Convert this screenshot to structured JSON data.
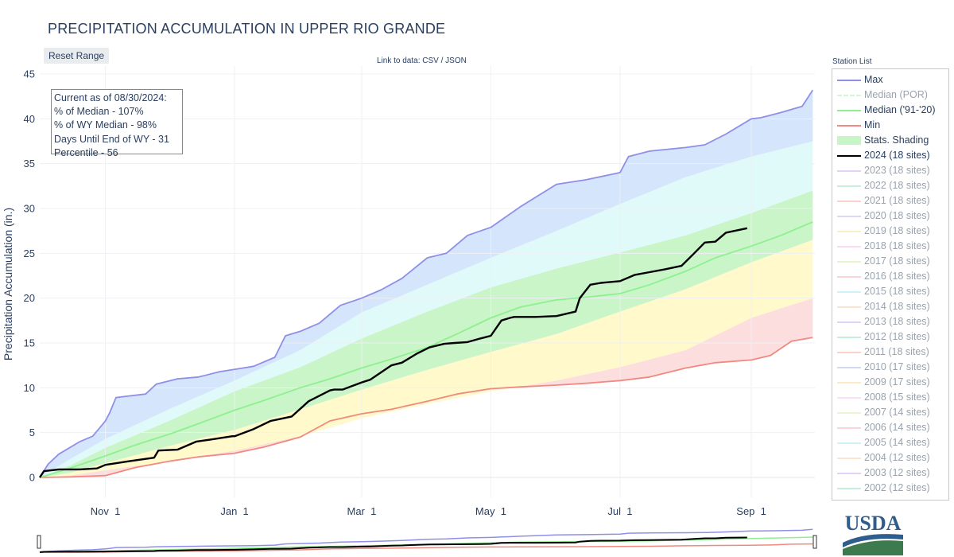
{
  "page": {
    "title": "PRECIPITATION ACCUMULATION IN UPPER RIO GRANDE",
    "reset_label": "Reset Range",
    "data_link_prefix": "Link to data:",
    "data_link_csv": "CSV",
    "data_link_sep": "/",
    "data_link_json": "JSON",
    "logo_text": "USDA"
  },
  "annotation": {
    "lines": [
      "Current as of 08/30/2024:",
      "% of Median - 107%",
      "% of WY Median - 98%",
      "Days Until End of WY - 31",
      "Percentile - 56"
    ]
  },
  "legend": {
    "title": "Station List",
    "items": [
      {
        "label": "Max",
        "color": "#8f8fe8",
        "style": "line",
        "active": true
      },
      {
        "label": "Median (POR)",
        "color": "#a6f2a6",
        "style": "dash",
        "active": false
      },
      {
        "label": "Median ('91-'20)",
        "color": "#8ef08e",
        "style": "line",
        "active": true
      },
      {
        "label": "Min",
        "color": "#f08a80",
        "style": "line",
        "active": true
      },
      {
        "label": "Stats. Shading",
        "color": "#c8f5c8",
        "style": "fill",
        "active": true
      },
      {
        "label": "2024 (18 sites)",
        "color": "#000000",
        "style": "line",
        "active": true
      },
      {
        "label": "2023 (18 sites)",
        "color": "#c9a4f2",
        "style": "line",
        "active": false
      },
      {
        "label": "2022 (18 sites)",
        "color": "#8fdcb8",
        "style": "line",
        "active": false
      },
      {
        "label": "2021 (18 sites)",
        "color": "#f4a69c",
        "style": "line",
        "active": false
      },
      {
        "label": "2020 (18 sites)",
        "color": "#b4b4f0",
        "style": "line",
        "active": false
      },
      {
        "label": "2019 (18 sites)",
        "color": "#f6e08c",
        "style": "line",
        "active": false
      },
      {
        "label": "2018 (18 sites)",
        "color": "#f4b4f0",
        "style": "line",
        "active": false
      },
      {
        "label": "2017 (18 sites)",
        "color": "#cdeaa0",
        "style": "line",
        "active": false
      },
      {
        "label": "2016 (18 sites)",
        "color": "#f6a8b8",
        "style": "line",
        "active": false
      },
      {
        "label": "2015 (18 sites)",
        "color": "#9ce6f2",
        "style": "line",
        "active": false
      },
      {
        "label": "2014 (18 sites)",
        "color": "#f6c8a0",
        "style": "line",
        "active": false
      },
      {
        "label": "2013 (18 sites)",
        "color": "#c9a4f2",
        "style": "line",
        "active": false
      },
      {
        "label": "2012 (18 sites)",
        "color": "#8fdcb8",
        "style": "line",
        "active": false
      },
      {
        "label": "2011 (18 sites)",
        "color": "#f4a69c",
        "style": "line",
        "active": false
      },
      {
        "label": "2010 (17 sites)",
        "color": "#a8b4ec",
        "style": "line",
        "active": false
      },
      {
        "label": "2009 (17 sites)",
        "color": "#f6d58c",
        "style": "line",
        "active": false
      },
      {
        "label": "2008 (15 sites)",
        "color": "#f4c0f0",
        "style": "line",
        "active": false
      },
      {
        "label": "2007 (14 sites)",
        "color": "#d4ecac",
        "style": "line",
        "active": false
      },
      {
        "label": "2006 (14 sites)",
        "color": "#f6a8b8",
        "style": "line",
        "active": false
      },
      {
        "label": "2005 (14 sites)",
        "color": "#9ce6f2",
        "style": "line",
        "active": false
      },
      {
        "label": "2004 (12 sites)",
        "color": "#f6c8a0",
        "style": "line",
        "active": false
      },
      {
        "label": "2003 (12 sites)",
        "color": "#c9a4f2",
        "style": "line",
        "active": false
      },
      {
        "label": "2002 (12 sites)",
        "color": "#8fdcb8",
        "style": "line",
        "active": false
      }
    ]
  },
  "chart_data": {
    "type": "line",
    "title": "PRECIPITATION ACCUMULATION IN UPPER RIO GRANDE",
    "ylabel": "Precipitation Accumulation (in.)",
    "xlabel": "",
    "ylim": [
      -2.5,
      45
    ],
    "y_ticks": [
      0,
      5,
      10,
      15,
      20,
      25,
      30,
      35,
      40,
      45
    ],
    "x_range": [
      "2023-10-01",
      "2024-10-01"
    ],
    "x_ticks": [
      {
        "date": "2023-11-01",
        "label": "Nov  1"
      },
      {
        "date": "2024-01-01",
        "label": "Jan  1"
      },
      {
        "date": "2024-03-01",
        "label": "Mar  1"
      },
      {
        "date": "2024-05-01",
        "label": "May  1"
      },
      {
        "date": "2024-07-01",
        "label": "Jul  1"
      },
      {
        "date": "2024-09-01",
        "label": "Sep  1"
      }
    ],
    "grid": true,
    "legend_position": "right",
    "bands": {
      "colors": [
        "#fddede",
        "#fff9cc",
        "#c9f5c9",
        "#e0fafa",
        "#d5e5fb"
      ],
      "x": [
        "2023-10-01",
        "2023-10-15",
        "2023-11-01",
        "2023-12-01",
        "2024-01-01",
        "2024-02-01",
        "2024-03-01",
        "2024-04-01",
        "2024-05-01",
        "2024-06-01",
        "2024-07-01",
        "2024-08-01",
        "2024-09-01",
        "2024-09-30"
      ],
      "p10": [
        0.0,
        0.2,
        0.8,
        1.8,
        3.0,
        4.6,
        6.6,
        8.2,
        9.6,
        10.8,
        12.3,
        14.2,
        17.8,
        20.0
      ],
      "p30": [
        0.0,
        0.5,
        1.6,
        3.5,
        5.3,
        7.6,
        9.8,
        12.0,
        14.0,
        16.0,
        18.5,
        21.0,
        24.0,
        26.5
      ],
      "p70": [
        0.0,
        1.3,
        3.3,
        6.3,
        9.6,
        12.3,
        15.5,
        18.5,
        21.2,
        23.3,
        25.1,
        27.0,
        29.5,
        32.0
      ],
      "p90": [
        0.0,
        2.0,
        4.3,
        7.6,
        10.8,
        14.2,
        18.4,
        21.5,
        24.5,
        27.5,
        30.5,
        33.5,
        35.8,
        37.5
      ]
    },
    "series": [
      {
        "name": "Max",
        "color": "#8f8fe8",
        "x": [
          "2023-10-01",
          "2023-10-05",
          "2023-10-10",
          "2023-10-20",
          "2023-10-26",
          "2023-11-01",
          "2023-11-03",
          "2023-11-06",
          "2023-11-09",
          "2023-11-20",
          "2023-11-25",
          "2023-12-05",
          "2023-12-15",
          "2023-12-25",
          "2024-01-05",
          "2024-01-10",
          "2024-01-20",
          "2024-01-25",
          "2024-02-01",
          "2024-02-10",
          "2024-02-20",
          "2024-03-01",
          "2024-03-10",
          "2024-03-20",
          "2024-04-01",
          "2024-04-10",
          "2024-04-20",
          "2024-05-01",
          "2024-05-15",
          "2024-06-01",
          "2024-06-15",
          "2024-07-01",
          "2024-07-05",
          "2024-07-15",
          "2024-08-01",
          "2024-08-10",
          "2024-08-20",
          "2024-09-01",
          "2024-09-05",
          "2024-09-15",
          "2024-09-25",
          "2024-09-30"
        ],
        "y": [
          0,
          1.5,
          2.6,
          4.0,
          4.6,
          6.3,
          7.2,
          8.9,
          9.0,
          9.3,
          10.4,
          11.0,
          11.2,
          11.8,
          12.2,
          12.4,
          13.4,
          15.8,
          16.3,
          17.2,
          19.2,
          20.0,
          20.9,
          22.2,
          24.5,
          25.0,
          27.0,
          27.9,
          30.2,
          32.7,
          33.2,
          34.0,
          35.8,
          36.4,
          36.8,
          37.1,
          38.3,
          40.0,
          40.1,
          40.7,
          41.4,
          43.2
        ]
      },
      {
        "name": "Median ('91-'20)",
        "color": "#8ef08e",
        "x": [
          "2023-10-01",
          "2023-10-15",
          "2023-11-01",
          "2023-11-15",
          "2023-12-01",
          "2023-12-15",
          "2024-01-01",
          "2024-01-15",
          "2024-02-01",
          "2024-02-15",
          "2024-03-01",
          "2024-03-15",
          "2024-04-01",
          "2024-04-15",
          "2024-05-01",
          "2024-05-15",
          "2024-06-01",
          "2024-06-15",
          "2024-07-01",
          "2024-07-15",
          "2024-08-01",
          "2024-08-15",
          "2024-09-01",
          "2024-09-15",
          "2024-09-30"
        ],
        "y": [
          0,
          1.0,
          2.4,
          3.6,
          4.8,
          6.0,
          7.5,
          8.6,
          10.0,
          11.0,
          12.2,
          13.2,
          14.5,
          16.0,
          17.8,
          19.0,
          19.8,
          20.1,
          20.5,
          21.5,
          23.0,
          24.5,
          25.8,
          27.0,
          28.5
        ]
      },
      {
        "name": "Min",
        "color": "#f08a80",
        "x": [
          "2023-10-01",
          "2023-10-15",
          "2023-11-01",
          "2023-11-15",
          "2023-12-01",
          "2023-12-15",
          "2024-01-01",
          "2024-01-15",
          "2024-02-01",
          "2024-02-15",
          "2024-03-01",
          "2024-03-15",
          "2024-04-01",
          "2024-04-15",
          "2024-05-01",
          "2024-05-15",
          "2024-06-01",
          "2024-06-15",
          "2024-07-01",
          "2024-07-15",
          "2024-08-01",
          "2024-08-15",
          "2024-09-01",
          "2024-09-10",
          "2024-09-20",
          "2024-09-30"
        ],
        "y": [
          0,
          0.05,
          0.2,
          1.1,
          1.8,
          2.3,
          2.7,
          3.4,
          4.5,
          6.3,
          7.1,
          7.6,
          8.5,
          9.3,
          9.9,
          10.1,
          10.3,
          10.5,
          10.8,
          11.2,
          12.2,
          12.8,
          13.1,
          13.6,
          15.2,
          15.6
        ]
      },
      {
        "name": "2024 (18 sites)",
        "color": "#000000",
        "x": [
          "2023-10-01",
          "2023-10-03",
          "2023-10-10",
          "2023-10-20",
          "2023-10-28",
          "2023-11-01",
          "2023-11-12",
          "2023-11-24",
          "2023-11-26",
          "2023-12-05",
          "2023-12-14",
          "2023-12-20",
          "2023-12-31",
          "2024-01-01",
          "2024-01-10",
          "2024-01-18",
          "2024-01-22",
          "2024-01-28",
          "2024-02-05",
          "2024-02-15",
          "2024-02-17",
          "2024-02-21",
          "2024-03-01",
          "2024-03-05",
          "2024-03-15",
          "2024-03-20",
          "2024-03-27",
          "2024-04-02",
          "2024-04-09",
          "2024-04-14",
          "2024-04-20",
          "2024-04-26",
          "2024-05-01",
          "2024-05-06",
          "2024-05-10",
          "2024-05-12",
          "2024-05-22",
          "2024-06-01",
          "2024-06-10",
          "2024-06-12",
          "2024-06-17",
          "2024-06-22",
          "2024-07-01",
          "2024-07-08",
          "2024-07-15",
          "2024-07-22",
          "2024-07-30",
          "2024-08-05",
          "2024-08-10",
          "2024-08-15",
          "2024-08-20",
          "2024-08-30"
        ],
        "y": [
          0,
          0.7,
          0.9,
          0.9,
          1.0,
          1.4,
          1.8,
          2.2,
          3.0,
          3.1,
          4.0,
          4.2,
          4.6,
          4.6,
          5.4,
          6.3,
          6.5,
          6.8,
          8.5,
          9.7,
          9.8,
          9.8,
          10.6,
          10.9,
          12.5,
          12.8,
          13.8,
          14.5,
          14.9,
          15.0,
          15.1,
          15.5,
          15.8,
          17.5,
          17.8,
          17.9,
          17.9,
          18.0,
          18.5,
          20.0,
          21.5,
          21.7,
          21.9,
          22.6,
          22.9,
          23.2,
          23.6,
          25.0,
          26.2,
          26.3,
          27.3,
          27.8
        ]
      }
    ]
  }
}
